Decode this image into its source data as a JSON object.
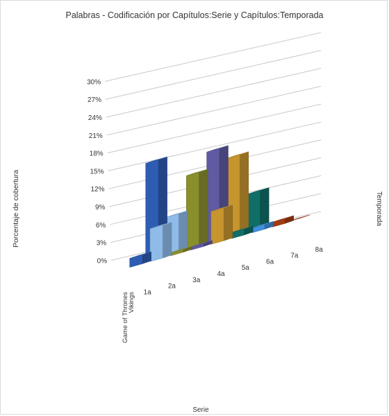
{
  "chart_data": {
    "type": "bar",
    "title": "Palabras - Codificación por Capítulos:Serie y Capítulos:Temporada",
    "xlabel": "Serie",
    "ylabel": "Porcentaje de cobertura",
    "zlabel": "Temporada",
    "yticks": [
      "0%",
      "3%",
      "6%",
      "9%",
      "12%",
      "15%",
      "18%",
      "21%",
      "24%",
      "27%",
      "30%"
    ],
    "ylim": [
      0,
      30
    ],
    "series_axis_labels": [
      "Game of Thrones",
      "Vikings"
    ],
    "grid": true,
    "three_d": true,
    "categories": [
      "1a",
      "2a",
      "3a",
      "4a",
      "5a",
      "6a",
      "7a",
      "8a"
    ],
    "series": [
      {
        "name": "Game of Thrones",
        "values": [
          1.5,
          5.5,
          0.5,
          0.5,
          5.5,
          1.0,
          0.8,
          0.8
        ]
      },
      {
        "name": "Vikings",
        "values": [
          16.5,
          6.5,
          12.5,
          15.5,
          13.5,
          6.5,
          0,
          0
        ]
      }
    ],
    "colors": [
      "#2f5cb3",
      "#8fbbe8",
      "#8a8f2e",
      "#5f5ba3",
      "#c7952e",
      "#0f6e66",
      "#3f8fdb",
      "#a33a12"
    ]
  }
}
